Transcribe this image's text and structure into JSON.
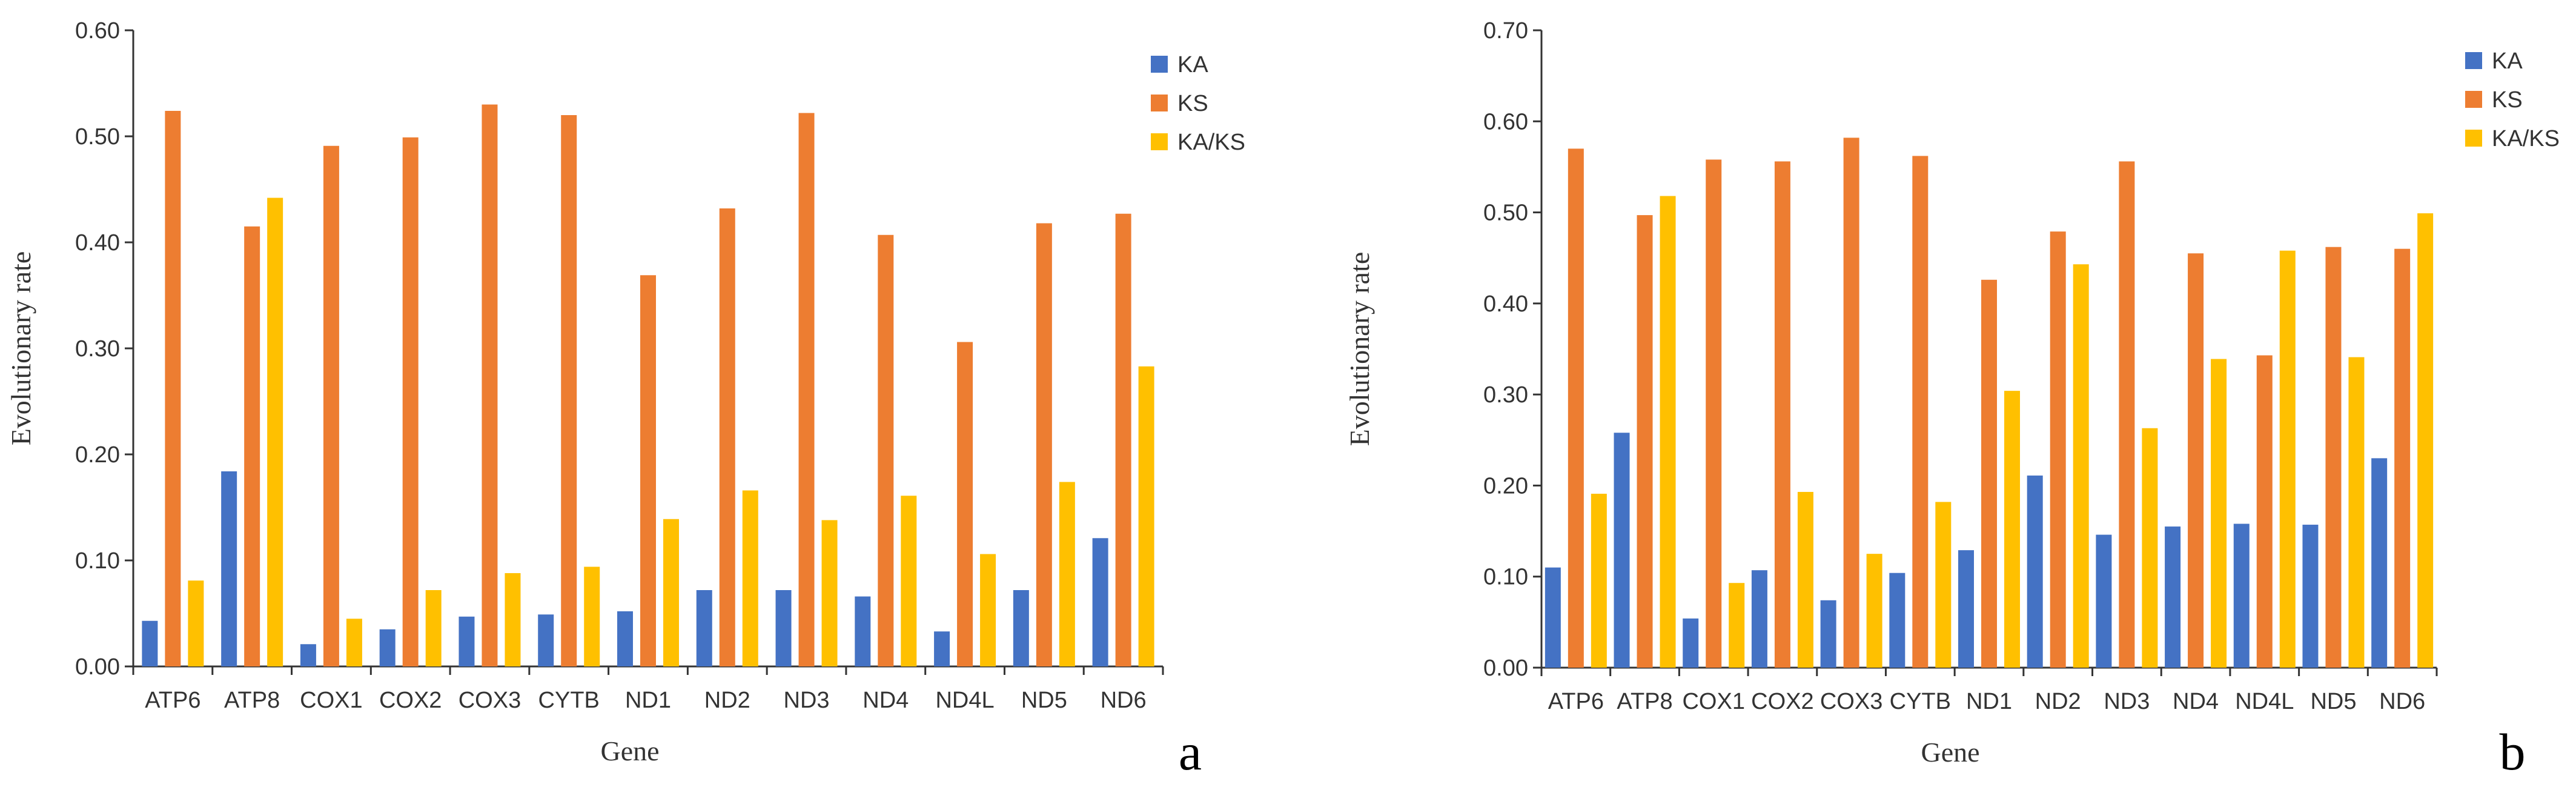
{
  "colors": {
    "KA": "#4472C4",
    "KS": "#ED7D31",
    "KA/KS": "#FFC000"
  },
  "chart_data": [
    {
      "type": "bar",
      "panel_label": "a",
      "xlabel": "Gene",
      "ylabel": "Evolutionary rate",
      "ylim": [
        0,
        0.6
      ],
      "yticks": [
        "0.00",
        "0.10",
        "0.20",
        "0.30",
        "0.40",
        "0.50",
        "0.60"
      ],
      "legend_position": "top-right",
      "categories": [
        "ATP6",
        "ATP8",
        "COX1",
        "COX2",
        "COX3",
        "CYTB",
        "ND1",
        "ND2",
        "ND3",
        "ND4",
        "ND4L",
        "ND5",
        "ND6"
      ],
      "series": [
        {
          "name": "KA",
          "values": [
            0.043,
            0.184,
            0.021,
            0.035,
            0.047,
            0.049,
            0.052,
            0.072,
            0.072,
            0.066,
            0.033,
            0.072,
            0.121
          ]
        },
        {
          "name": "KS",
          "values": [
            0.524,
            0.415,
            0.491,
            0.499,
            0.53,
            0.52,
            0.369,
            0.432,
            0.522,
            0.407,
            0.306,
            0.418,
            0.427
          ]
        },
        {
          "name": "KA/KS",
          "values": [
            0.081,
            0.442,
            0.045,
            0.072,
            0.088,
            0.094,
            0.139,
            0.166,
            0.138,
            0.161,
            0.106,
            0.174,
            0.283
          ]
        }
      ]
    },
    {
      "type": "bar",
      "panel_label": "b",
      "xlabel": "Gene",
      "ylabel": "Evolutionary rate",
      "ylim": [
        0,
        0.7
      ],
      "yticks": [
        "0.00",
        "0.10",
        "0.20",
        "0.30",
        "0.40",
        "0.50",
        "0.60",
        "0.70"
      ],
      "legend_position": "top-right",
      "categories": [
        "ATP6",
        "ATP8",
        "COX1",
        "COX2",
        "COX3",
        "CYTB",
        "ND1",
        "ND2",
        "ND3",
        "ND4",
        "ND4L",
        "ND5",
        "ND6"
      ],
      "series": [
        {
          "name": "KA",
          "values": [
            0.11,
            0.258,
            0.054,
            0.107,
            0.074,
            0.104,
            0.129,
            0.211,
            0.146,
            0.155,
            0.158,
            0.157,
            0.23
          ]
        },
        {
          "name": "KS",
          "values": [
            0.57,
            0.497,
            0.558,
            0.556,
            0.582,
            0.562,
            0.426,
            0.479,
            0.556,
            0.455,
            0.343,
            0.462,
            0.46
          ]
        },
        {
          "name": "KA/KS",
          "values": [
            0.191,
            0.518,
            0.093,
            0.193,
            0.125,
            0.182,
            0.304,
            0.443,
            0.263,
            0.339,
            0.458,
            0.341,
            0.499
          ]
        }
      ]
    }
  ]
}
